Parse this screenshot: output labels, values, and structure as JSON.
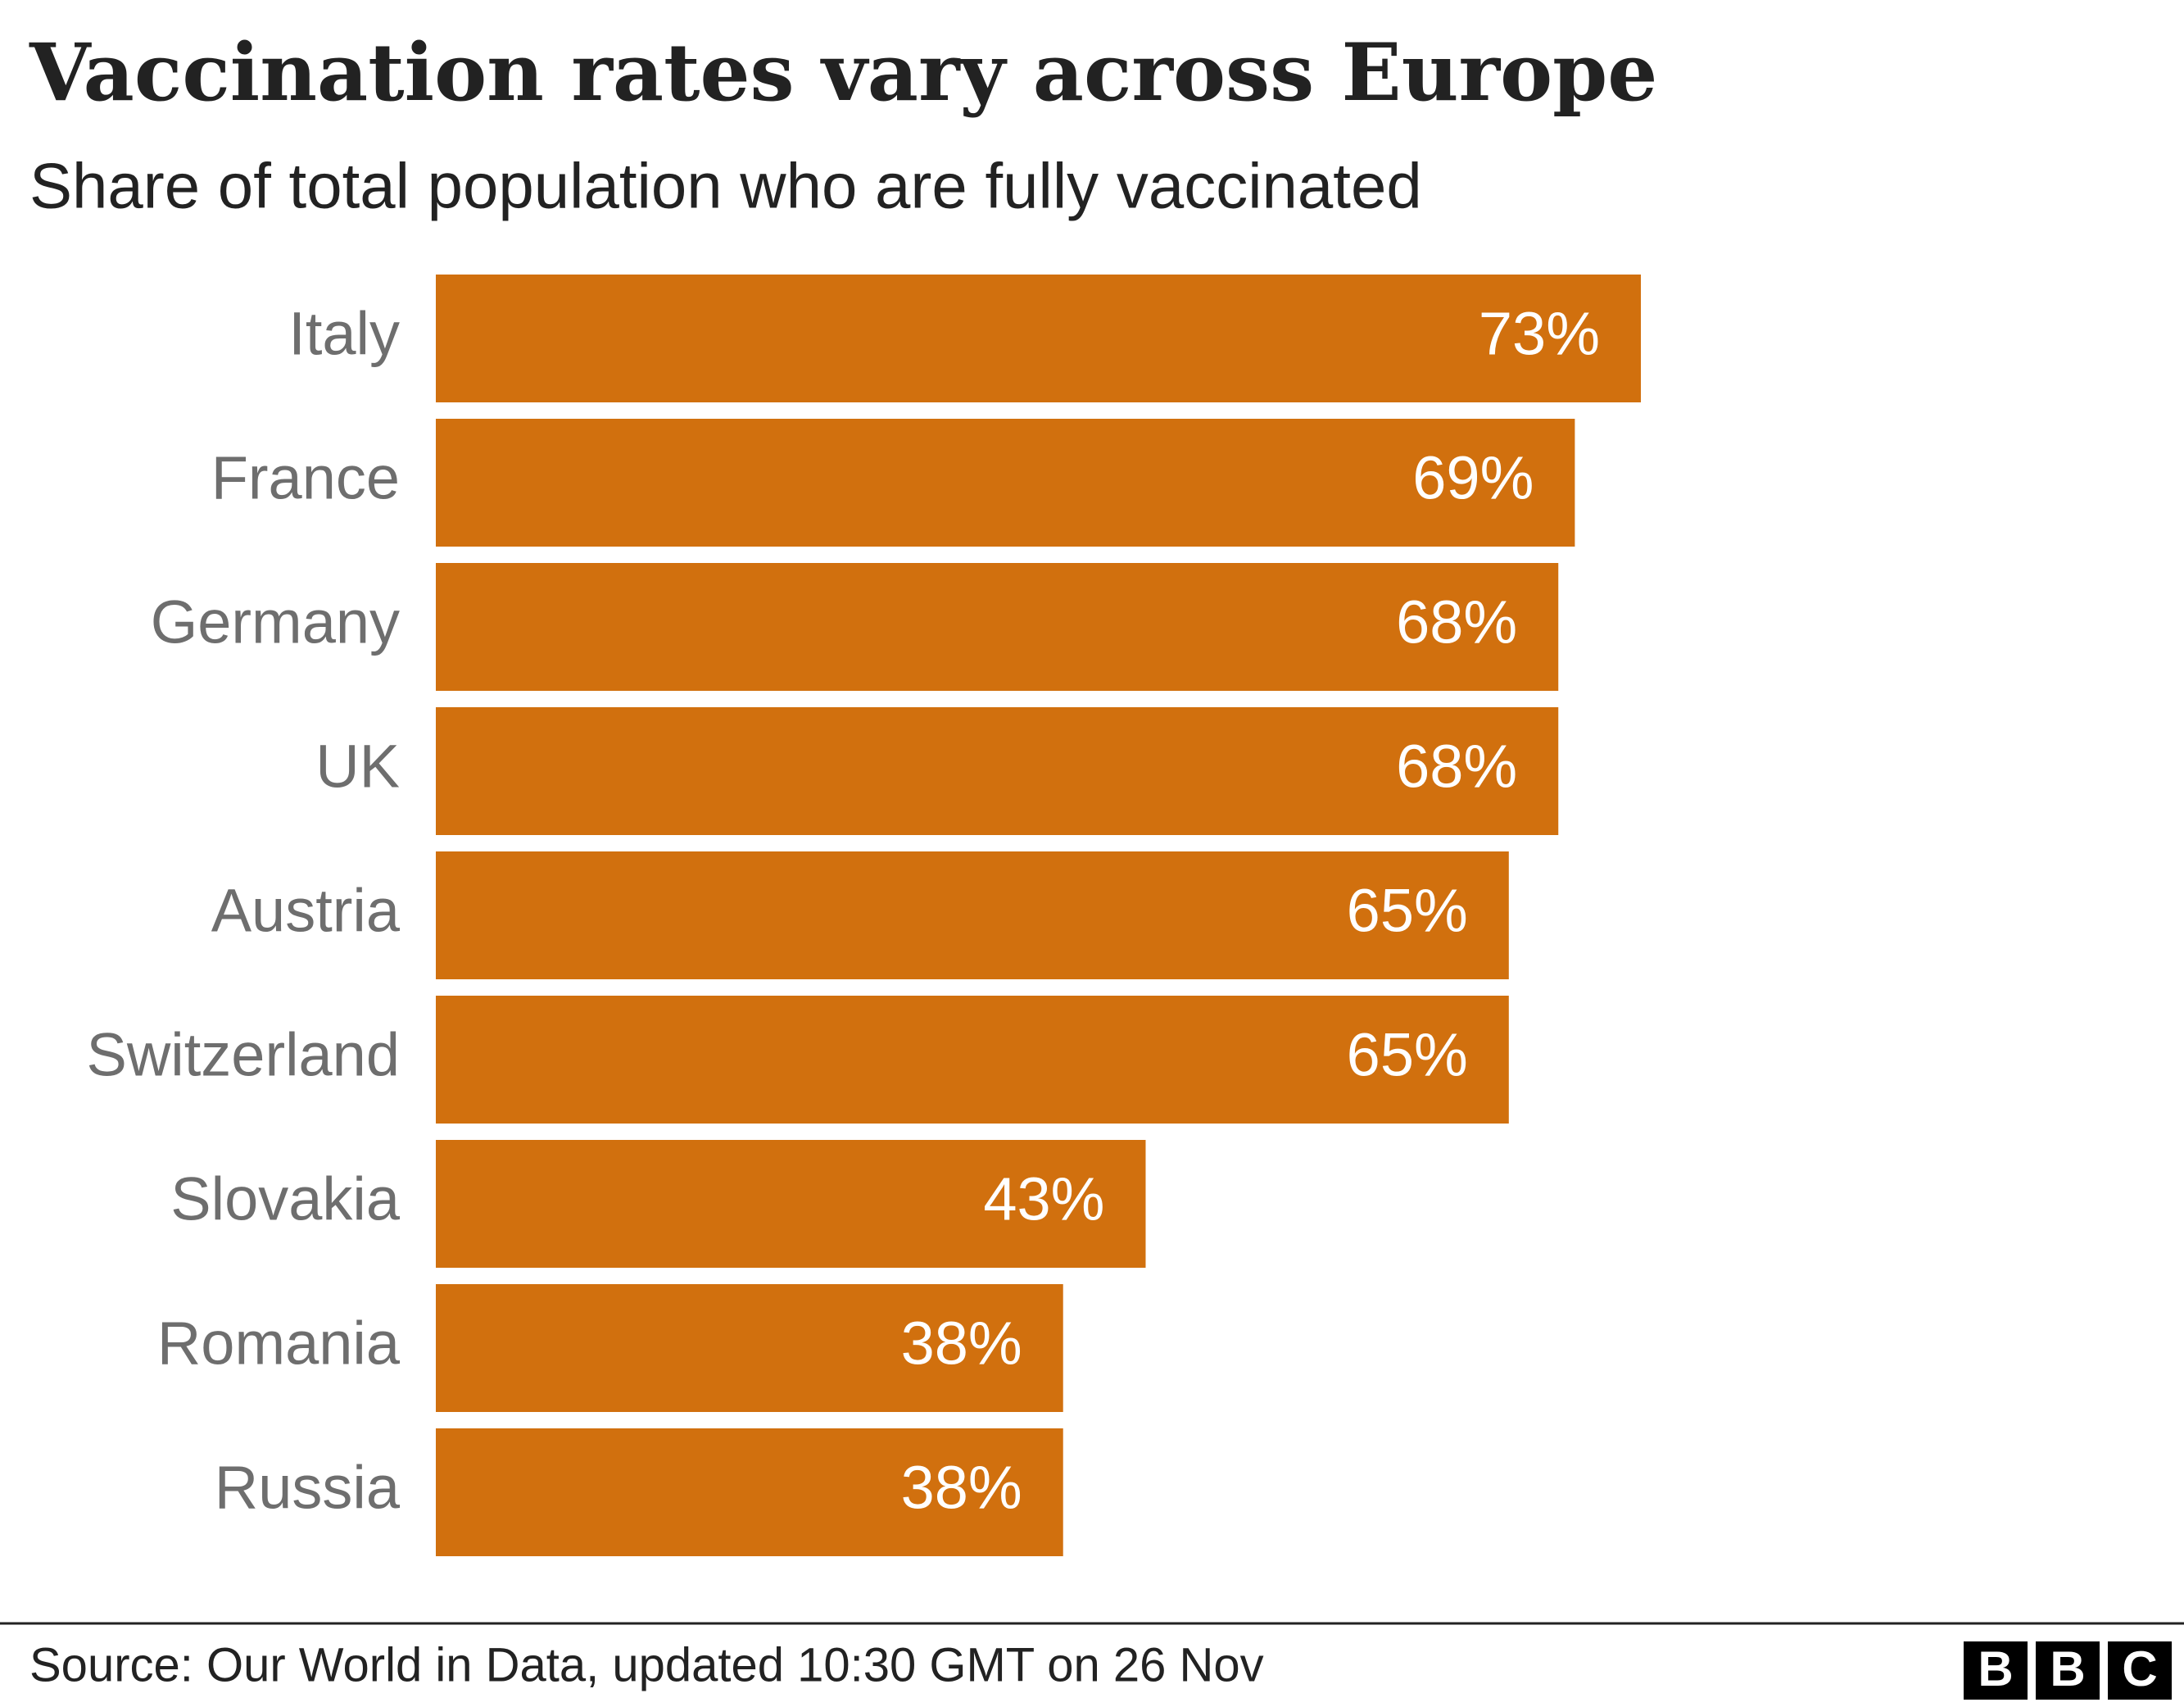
{
  "chart_data": {
    "type": "hbar",
    "title": "Vaccination rates vary across Europe",
    "subtitle": "Share of total population who are fully vaccinated",
    "categories": [
      "Italy",
      "France",
      "Germany",
      "UK",
      "Austria",
      "Switzerland",
      "Slovakia",
      "Romania",
      "Russia"
    ],
    "values": [
      73,
      69,
      68,
      68,
      65,
      65,
      43,
      38,
      38
    ],
    "value_labels": [
      "73%",
      "69%",
      "68%",
      "68%",
      "65%",
      "65%",
      "43%",
      "38%",
      "38%"
    ],
    "color": "#d1700e",
    "source": "Source: Our World in Data, updated 10:30 GMT on 26 Nov",
    "logo": [
      "B",
      "B",
      "C"
    ]
  }
}
